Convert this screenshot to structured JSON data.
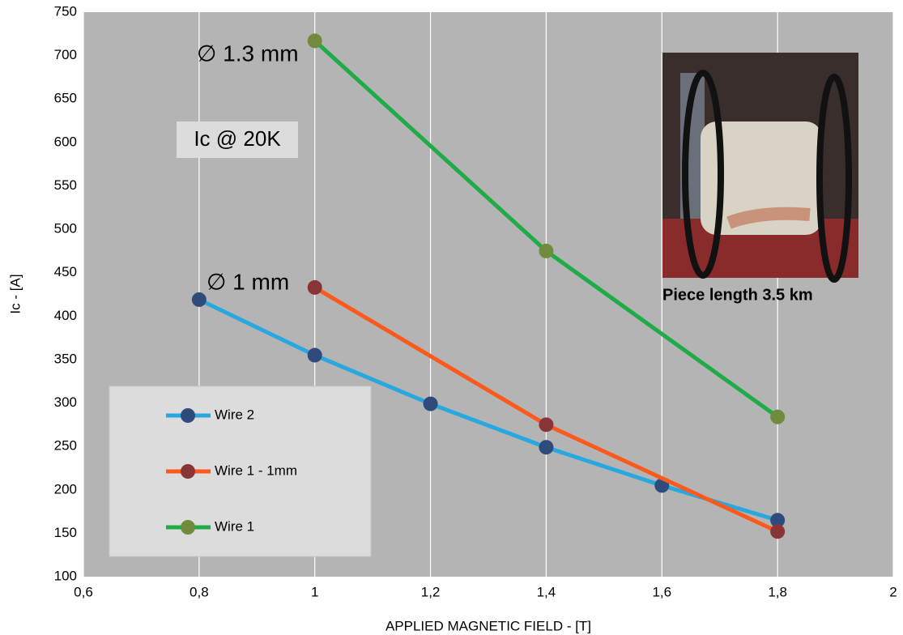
{
  "chart_data": {
    "type": "line",
    "y_label": "Ic - [A]",
    "x_label": "APPLIED MAGNETIC FIELD - [T]",
    "xlim": [
      0.6,
      2
    ],
    "xticks": [
      {
        "value": 0.6,
        "label": "0,6"
      },
      {
        "value": 0.8,
        "label": "0,8"
      },
      1,
      {
        "value": 1.2,
        "label": "1,2"
      },
      {
        "value": 1.4,
        "label": "1,4"
      },
      {
        "value": 1.6,
        "label": "1,6"
      },
      {
        "value": 1.8,
        "label": "1,8"
      },
      2
    ],
    "ylim": [
      100,
      750
    ],
    "yticks": [
      100,
      150,
      200,
      250,
      300,
      350,
      400,
      450,
      500,
      550,
      600,
      650,
      700,
      750
    ],
    "grid": true,
    "series": [
      {
        "name": "Wire 2",
        "color": "#29a8e0",
        "marker_color": "#2f4b7c",
        "x": [
          0.8,
          1,
          1.2,
          1.4,
          1.6,
          1.8
        ],
        "values": [
          419,
          355,
          299,
          249,
          205,
          165
        ]
      },
      {
        "name": "Wire 1 - 1mm",
        "color": "#fc5a1c",
        "marker_color": "#8a3535",
        "x": [
          1,
          1.4,
          1.8
        ],
        "values": [
          433,
          275,
          152
        ]
      },
      {
        "name": "Wire 1",
        "color": "#1fab47",
        "marker_color": "#6f8b3b",
        "x": [
          1,
          1.4,
          1.8
        ],
        "values": [
          717,
          475,
          284
        ]
      }
    ],
    "annotations": [
      "∅ 1.3 mm",
      "Ic @ 20K",
      "∅ 1 mm",
      "Piece length 3.5 km"
    ]
  }
}
